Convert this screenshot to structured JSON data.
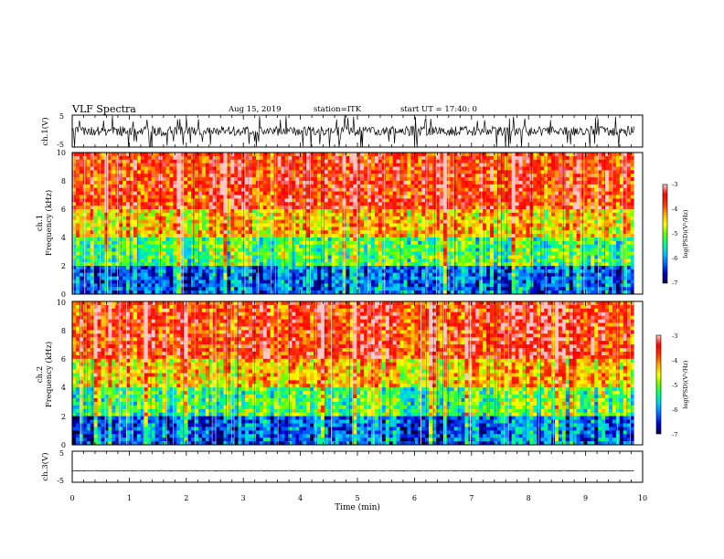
{
  "header": {
    "title": "VLF Spectra",
    "date": "Aug 15, 2019",
    "station": "station=ITK",
    "start": "start UT =  17:40: 0"
  },
  "chart_data": [
    {
      "type": "line",
      "name": "ch1-waveform",
      "ylabel": "ch.1(V)",
      "ylim": [
        -5,
        5
      ],
      "ytick_labels": [
        "-5",
        "5"
      ],
      "xlim": [
        0,
        9.85
      ],
      "baseline_v": 0.0,
      "noise_amplitude_v": 1.5,
      "spike_amplitude_v": 5
    },
    {
      "type": "heatmap",
      "name": "ch1-spectrogram",
      "ylabel_line1": "ch.1",
      "ylabel_line2": "Frequency (kHz)",
      "ylim": [
        0,
        10
      ],
      "ytick_labels": [
        "0",
        "2",
        "4",
        "6",
        "8",
        "10"
      ],
      "xlim": [
        0,
        9.85
      ],
      "colorbar": {
        "label": "log(PSD)(V²/Hz)",
        "range": [
          -7,
          -3
        ],
        "tick_labels": [
          "-7",
          "-6",
          "-5",
          "-4",
          "-3"
        ],
        "colors": [
          "#000044",
          "#0000cc",
          "#0066ff",
          "#00c8ff",
          "#00ff88",
          "#66ff00",
          "#ffff00",
          "#ffaa00",
          "#ff3300",
          "#ff0000",
          "#ffc8c8"
        ]
      },
      "approx_log_psd_by_band": [
        {
          "freq_khz": [
            0,
            2
          ],
          "log_psd": -6.2
        },
        {
          "freq_khz": [
            2,
            4
          ],
          "log_psd": -5.2
        },
        {
          "freq_khz": [
            4,
            6
          ],
          "log_psd": -4.4
        },
        {
          "freq_khz": [
            6,
            10
          ],
          "log_psd": -3.7
        }
      ]
    },
    {
      "type": "heatmap",
      "name": "ch2-spectrogram",
      "ylabel_line1": "ch.2",
      "ylabel_line2": "Frequency (kHz)",
      "ylim": [
        0,
        10
      ],
      "ytick_labels": [
        "0",
        "2",
        "4",
        "6",
        "8",
        "10"
      ],
      "xlim": [
        0,
        9.85
      ],
      "colorbar": {
        "label": "log(PSD)(V²/Hz)",
        "range": [
          -7,
          -3
        ],
        "tick_labels": [
          "-7",
          "-6",
          "-5",
          "-4",
          "-3"
        ],
        "colors": [
          "#000044",
          "#0000cc",
          "#0066ff",
          "#00c8ff",
          "#00ff88",
          "#66ff00",
          "#ffff00",
          "#ffaa00",
          "#ff3300",
          "#ff0000",
          "#ffc8c8"
        ]
      },
      "approx_log_psd_by_band": [
        {
          "freq_khz": [
            0,
            2
          ],
          "log_psd": -6.2
        },
        {
          "freq_khz": [
            2,
            4
          ],
          "log_psd": -5.2
        },
        {
          "freq_khz": [
            4,
            6
          ],
          "log_psd": -4.4
        },
        {
          "freq_khz": [
            6,
            10
          ],
          "log_psd": -3.7
        }
      ]
    },
    {
      "type": "line",
      "name": "ch3-waveform",
      "ylabel": "ch.3(V)",
      "ylim": [
        -5,
        5
      ],
      "ytick_labels": [
        "-5",
        "5"
      ],
      "xlim": [
        0,
        9.85
      ],
      "baseline_v": -1.3,
      "noise_amplitude_v": 0.1
    }
  ],
  "xaxis": {
    "label": "Time (min)",
    "range": [
      0,
      10
    ],
    "tick_labels": [
      "0",
      "1",
      "2",
      "3",
      "4",
      "5",
      "6",
      "7",
      "8",
      "9",
      "10"
    ]
  }
}
